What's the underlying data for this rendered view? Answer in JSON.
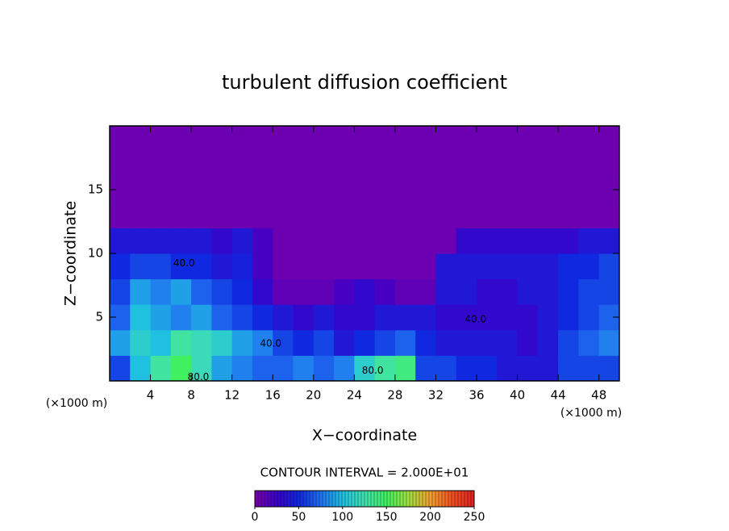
{
  "chart_data": {
    "type": "heatmap",
    "title": "turbulent diffusion coefficient",
    "xlabel": "X−coordinate",
    "ylabel": "Z−coordinate",
    "xunit_left": "(×1000 m)",
    "xunit_right": "(×1000 m)",
    "xlim": [
      0,
      50
    ],
    "ylim": [
      0,
      20
    ],
    "xticks": [
      4,
      8,
      12,
      16,
      20,
      24,
      28,
      32,
      36,
      40,
      44,
      48
    ],
    "yticks": [
      5,
      10,
      15
    ],
    "xbins": [
      0,
      2,
      4,
      6,
      8,
      10,
      12,
      14,
      16,
      18,
      20,
      22,
      24,
      26,
      28,
      30,
      32,
      34,
      36,
      38,
      40,
      42,
      44,
      46,
      48,
      50
    ],
    "ybins": [
      0,
      2,
      4,
      6,
      8,
      10,
      12,
      14,
      16,
      18,
      20
    ],
    "z": [
      [
        60,
        100,
        130,
        150,
        120,
        90,
        80,
        70,
        70,
        80,
        70,
        80,
        110,
        130,
        140,
        60,
        60,
        50,
        50,
        40,
        40,
        40,
        60,
        60,
        60
      ],
      [
        90,
        110,
        100,
        130,
        120,
        110,
        90,
        80,
        60,
        50,
        60,
        40,
        50,
        60,
        70,
        50,
        40,
        40,
        40,
        40,
        30,
        40,
        60,
        70,
        80
      ],
      [
        70,
        100,
        90,
        80,
        90,
        70,
        60,
        50,
        40,
        30,
        40,
        30,
        30,
        40,
        40,
        40,
        30,
        30,
        30,
        30,
        30,
        40,
        50,
        60,
        70
      ],
      [
        60,
        90,
        80,
        90,
        70,
        60,
        50,
        30,
        10,
        10,
        10,
        20,
        30,
        20,
        10,
        10,
        40,
        40,
        30,
        30,
        40,
        40,
        50,
        60,
        60
      ],
      [
        50,
        60,
        60,
        50,
        50,
        40,
        45,
        20,
        5,
        5,
        5,
        5,
        5,
        5,
        5,
        5,
        40,
        40,
        40,
        40,
        40,
        40,
        50,
        50,
        60
      ],
      [
        40,
        40,
        40,
        40,
        40,
        30,
        40,
        20,
        5,
        5,
        5,
        5,
        5,
        5,
        5,
        5,
        5,
        30,
        30,
        30,
        30,
        30,
        30,
        40,
        40
      ],
      [
        5,
        5,
        5,
        5,
        5,
        5,
        5,
        5,
        5,
        5,
        5,
        5,
        5,
        5,
        5,
        5,
        5,
        5,
        5,
        5,
        5,
        5,
        5,
        5,
        5
      ],
      [
        5,
        5,
        5,
        5,
        5,
        5,
        5,
        5,
        5,
        5,
        5,
        5,
        5,
        5,
        5,
        5,
        5,
        5,
        5,
        5,
        5,
        5,
        5,
        5,
        5
      ],
      [
        5,
        5,
        5,
        5,
        5,
        5,
        5,
        5,
        5,
        5,
        5,
        5,
        5,
        5,
        5,
        5,
        5,
        5,
        5,
        5,
        5,
        5,
        5,
        5,
        5
      ],
      [
        5,
        5,
        5,
        5,
        5,
        5,
        5,
        5,
        5,
        5,
        5,
        5,
        5,
        5,
        5,
        5,
        5,
        5,
        5,
        5,
        5,
        5,
        5,
        5,
        5
      ]
    ],
    "colorscale": [
      [
        0,
        "#7a00aa"
      ],
      [
        25,
        "#3a00c8"
      ],
      [
        50,
        "#1028e0"
      ],
      [
        75,
        "#2070f0"
      ],
      [
        100,
        "#20c0e0"
      ],
      [
        125,
        "#40e0b0"
      ],
      [
        150,
        "#40f060"
      ],
      [
        175,
        "#a0e040"
      ],
      [
        200,
        "#f0a030"
      ],
      [
        225,
        "#f05020"
      ],
      [
        250,
        "#e02020"
      ]
    ],
    "annotations": [
      {
        "text": "40.0",
        "x": 7.3,
        "y": 9.2
      },
      {
        "text": "40.0",
        "x": 15.8,
        "y": 2.9
      },
      {
        "text": "40.0",
        "x": 35.9,
        "y": 4.8
      },
      {
        "text": "80.0",
        "x": 8.7,
        "y": 0.3
      },
      {
        "text": "80.0",
        "x": 25.8,
        "y": 0.8
      }
    ],
    "contour_interval": "CONTOUR INTERVAL = 2.000E+01",
    "colorbar_lim": [
      0,
      250
    ],
    "colorbar_ticks": [
      0,
      50,
      100,
      150,
      200,
      250
    ]
  }
}
